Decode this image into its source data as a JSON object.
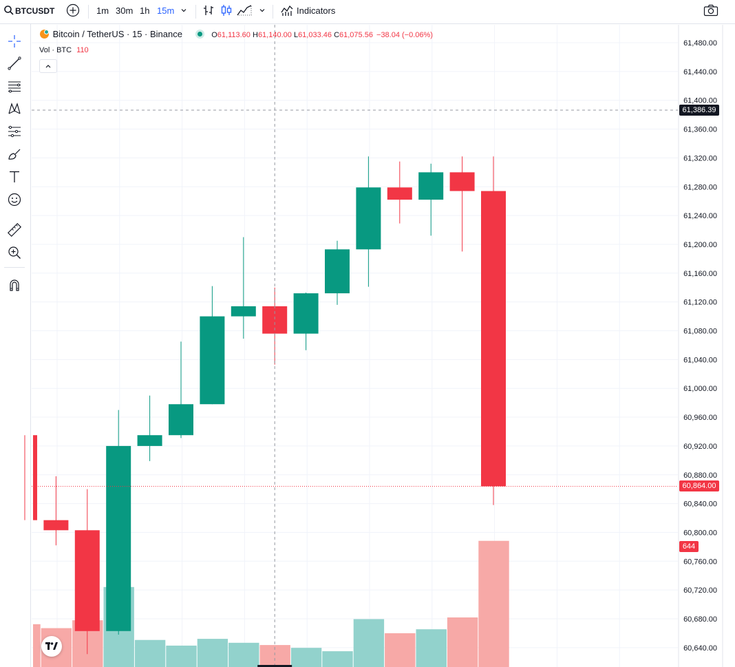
{
  "toolbar": {
    "symbol": "BTCUSDT",
    "intervals": [
      "1m",
      "30m",
      "1h",
      "15m"
    ],
    "active_interval": "15m",
    "indicators_label": "Indicators"
  },
  "legend": {
    "name": "Bitcoin / TetherUS · 15 · Binance",
    "o_label": "O",
    "o_value": "61,113.60",
    "h_label": "H",
    "h_value": "61,140.00",
    "l_label": "L",
    "l_value": "61,033.46",
    "c_label": "C",
    "c_value": "61,075.56",
    "change": "−38.04 (−0.06%)",
    "vol_label": "Vol · BTC",
    "vol_value": "110"
  },
  "price_axis": {
    "ticks": [
      "61,480.00",
      "61,440.00",
      "61,400.00",
      "61,360.00",
      "61,320.00",
      "61,280.00",
      "61,240.00",
      "61,200.00",
      "61,160.00",
      "61,120.00",
      "61,080.00",
      "61,040.00",
      "61,000.00",
      "60,960.00",
      "60,920.00",
      "60,880.00",
      "60,840.00",
      "60,800.00",
      "60,760.00",
      "60,720.00",
      "60,680.00",
      "60,640.00"
    ],
    "crosshair_price": "61,386.39",
    "last_price": "60,864.00",
    "last_volume": "644"
  },
  "colors": {
    "up": "#089981",
    "down": "#f23645",
    "vol_up": "#92d2cc",
    "vol_down": "#f7a9a7",
    "accent": "#2962ff"
  },
  "chart_data": {
    "type": "candlestick",
    "candles": [
      {
        "o": 60935,
        "h": 60935,
        "l": 60817,
        "c": 60817
      },
      {
        "o": 60817,
        "h": 60878,
        "l": 60782,
        "c": 60803
      },
      {
        "o": 60803,
        "h": 60860,
        "l": 60631,
        "c": 60663
      },
      {
        "o": 60663,
        "h": 60970,
        "l": 60658,
        "c": 60920
      },
      {
        "o": 60920,
        "h": 60990,
        "l": 60899,
        "c": 60935
      },
      {
        "o": 60935,
        "h": 61065,
        "l": 60931,
        "c": 60978
      },
      {
        "o": 60978,
        "h": 61142,
        "l": 60978,
        "c": 61100
      },
      {
        "o": 61100,
        "h": 61210,
        "l": 61069,
        "c": 61114
      },
      {
        "o": 61114,
        "h": 61140,
        "l": 61033,
        "c": 61076
      },
      {
        "o": 61076,
        "h": 61133,
        "l": 61053,
        "c": 61132
      },
      {
        "o": 61132,
        "h": 61205,
        "l": 61116,
        "c": 61193
      },
      {
        "o": 61193,
        "h": 61322,
        "l": 61141,
        "c": 61279
      },
      {
        "o": 61279,
        "h": 61315,
        "l": 61229,
        "c": 61262
      },
      {
        "o": 61262,
        "h": 61312,
        "l": 61212,
        "c": 61300
      },
      {
        "o": 61300,
        "h": 61322,
        "l": 61190,
        "c": 61274
      },
      {
        "o": 61274,
        "h": 61322,
        "l": 60838,
        "c": 60864
      }
    ],
    "volumes": [
      76,
      69,
      83,
      142,
      48,
      38,
      50,
      43,
      39,
      34,
      28,
      85,
      60,
      67,
      88,
      224
    ],
    "vol_max": 330,
    "ylim": [
      60625,
      61500
    ]
  }
}
